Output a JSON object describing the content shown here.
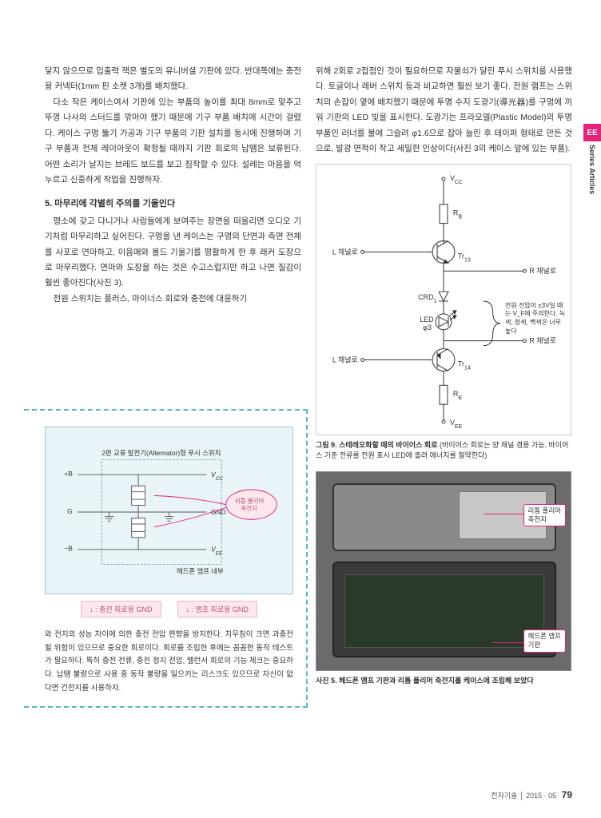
{
  "sideTab": {
    "ee": "EE",
    "label": "Series Articles"
  },
  "leftCol": {
    "p1": "닿지 않으므로 입출력 잭은 별도의 유니버셜 기판에 있다. 반대쪽에는 충전용 커넥터(1mm 핀 소켓 3개)를 배치했다.",
    "p2": "다소 작은 케이스여서 기판에 있는 부품의 높이를 최대 8mm로 맞추고 뚜껑 나사의 스터드를 깎아야 했기 때문에 기구 부품 배치에 시간이 걸렸다. 케이스 구멍 뚫기 가공과 기구 부품의 기판 설치를 동시에 진행하며 기구 부품과 전체 레이아웃이 확정될 때까지 기판 회로의 납땜은 보류된다. 어떤 소리가 날지는 브레드 보드를 보고 짐작할 수 있다. 설레는 마음을 억누르고 신중하게 작업을 진행하자.",
    "section5": "5. 마무리에 각별히 주의를 기울인다",
    "p3": "평소에 갖고 다니거나 사람들에게 보여주는 장면을 떠올리면 오디오 기기처럼 마무리하고 싶어진다. 구멍을 낸 케이스는 구멍의 단면과 측면 전체를 사포로 연마하고, 이음매와 몰드 기울기를 평활하게 한 후 래커 도장으로 마무리했다. 연마와 도장을 하는 것은 수고스럽지만 하고 나면 질감이 훨씬 좋아진다(사진 3).",
    "p4": "전원 스위치는 플러스, 마이너스 회로와 충전에 대응하기"
  },
  "rightCol": {
    "p1": "위해 2회로 2접점인 것이 필요하므로 자물쇠가 달린 푸시 스위치를 사용했다. 토글이나 레버 스위치 등과 비교하면 훨씬 보기 좋다. 전원 램프는 스위치의 손잡이 옆에 배치했기 때문에 투명 수지 도광기(導光器)를 구멍에 끼워 기판의 LED 빛을 표시한다. 도광기는 프라모델(Plastic Model)의 투명 부품인 러너를 불에 그슬려 φ1.6으로 잡아 늘린 후 테이퍼 형태로 만든 것으로, 발광 면적이 작고 세밀한 인상이다(사진 3의 케이스 앞에 있는 부품)."
  },
  "circuit": {
    "vcc": "V_CC",
    "vee": "V_EE",
    "rb": "R_B",
    "re": "R_E",
    "lch": "L 채널로",
    "rch": "R 채널로",
    "tr13": "Tr_13",
    "tr14": "Tr_14",
    "crd": "CRD_1",
    "led": "LED",
    "phi": "φ3",
    "note": "전원 전압이 ±3V일 때는 V_F에 주의한다. 녹색, 청색, 백색은 너무 높다",
    "caption_title": "그림 9. 스테레오화할 때의 바이어스 회로",
    "caption_sub": "(바이어스 회로는 양 채널 겸용 가능. 바이어스 기준 전류를 전원 표시 LED에 흘려 에너지를 절약한다)"
  },
  "photo": {
    "callout1": "리튬 폴리머\n축전지",
    "callout2": "헤드폰 앰프\n기판",
    "caption": "사진 5. 헤드폰 앰프 기판과 리튬 폴리머 축전지를 케이스에 조립해 보았다"
  },
  "diagram": {
    "title": "2편 교류 발전기(Alternator)형 푸시 스위치",
    "plusB": "+B",
    "G": "G",
    "minusB": "−B",
    "vcc": "V_CC",
    "gnd": "GND",
    "vee": "V_EE",
    "battery": "리튬 폴리머\n축전지",
    "inside": "헤드폰 앰프 내부",
    "legend1": "↓ : 충전 회로용 GND",
    "legend2": "↓ : 앰프 회로용 GND",
    "note": "와 전지의 성능 차이에 의한 충전 전압 편향을 방지한다. 치우침이 크면 과충전될 위험이 있으므로 중요한 회로이다. 회로를 조립한 후에는 꼼꼼한 동작 테스트가 필요하다. 특히 충전 전류, 충전 정지 전압, 밸런서 회로의 기능 체크는 중요하다. 납땜 불량으로 사용 중 동작 불량을 일으키는 리스크도 있으므로 자신이 없다면 건전지를 사용하자."
  },
  "footer": {
    "mag": "전자기술",
    "date": "2015 · 05",
    "page": "79"
  },
  "colors": {
    "accent": "#e8227a",
    "diagramBg": "#e8f4f7",
    "dashBorder": "#5ab5c8"
  }
}
